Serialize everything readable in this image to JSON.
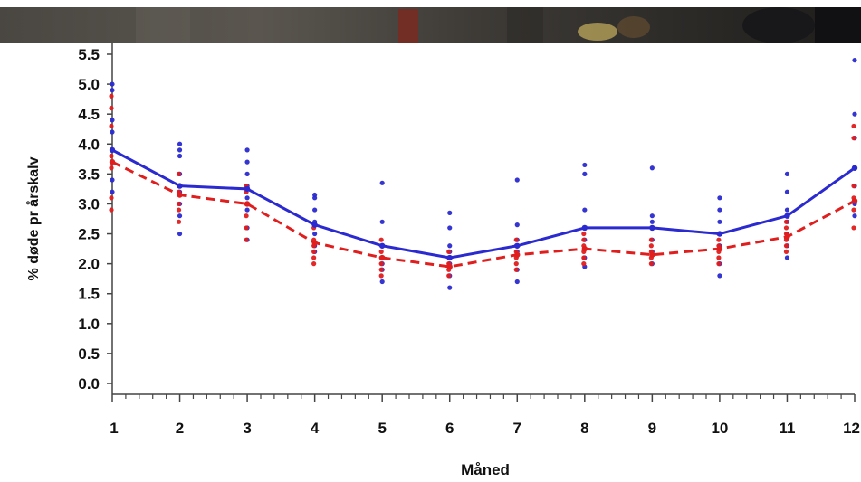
{
  "chart_data": {
    "type": "line",
    "title": "",
    "xlabel": "Måned",
    "ylabel": "% døde pr årskalv",
    "categories": [
      "1",
      "2",
      "3",
      "4",
      "5",
      "6",
      "7",
      "8",
      "9",
      "10",
      "11",
      "12"
    ],
    "ylim": [
      0,
      5.5
    ],
    "yticks": [
      "0.0",
      "0.5",
      "1.0",
      "1.5",
      "2.0",
      "2.5",
      "3.0",
      "3.5",
      "4.0",
      "4.5",
      "5.0",
      "5.5"
    ],
    "grid": false,
    "series": [
      {
        "color": "#2a2ad0",
        "line_style": "solid",
        "values": [
          3.9,
          3.3,
          3.25,
          2.65,
          2.3,
          2.1,
          2.3,
          2.6,
          2.6,
          2.5,
          2.8,
          3.6
        ],
        "points": [
          [
            5.0,
            4.9,
            4.4,
            4.2,
            3.9,
            3.4,
            3.2
          ],
          [
            4.0,
            3.9,
            3.8,
            3.5,
            3.2,
            3.0,
            2.8,
            2.5
          ],
          [
            3.9,
            3.7,
            3.5,
            3.3,
            3.1,
            2.9,
            2.6,
            2.4
          ],
          [
            3.15,
            3.1,
            2.9,
            2.7,
            2.5,
            2.3,
            2.2
          ],
          [
            3.35,
            2.7,
            2.3,
            2.1,
            2.0,
            1.9,
            1.7
          ],
          [
            2.85,
            2.6,
            2.3,
            2.2,
            2.0,
            1.8,
            1.6
          ],
          [
            3.4,
            2.65,
            2.4,
            2.3,
            2.2,
            1.9,
            1.7
          ],
          [
            3.65,
            3.5,
            2.9,
            2.6,
            2.4,
            2.1,
            1.95
          ],
          [
            3.6,
            2.8,
            2.7,
            2.6,
            2.4,
            2.2,
            2.0
          ],
          [
            3.1,
            2.9,
            2.7,
            2.5,
            2.3,
            2.0,
            1.8
          ],
          [
            3.5,
            3.2,
            2.9,
            2.7,
            2.5,
            2.3,
            2.1
          ],
          [
            5.4,
            4.5,
            4.1,
            3.6,
            3.3,
            3.0,
            2.8
          ]
        ]
      },
      {
        "color": "#e01e1e",
        "line_style": "dashed",
        "values": [
          3.7,
          3.15,
          3.0,
          2.35,
          2.1,
          1.95,
          2.15,
          2.25,
          2.15,
          2.25,
          2.45,
          3.05
        ],
        "points": [
          [
            4.8,
            4.6,
            4.3,
            3.8,
            3.6,
            3.1,
            2.9
          ],
          [
            3.5,
            3.3,
            3.2,
            3.0,
            2.9,
            2.7
          ],
          [
            3.3,
            3.2,
            3.0,
            2.8,
            2.6,
            2.4
          ],
          [
            2.6,
            2.4,
            2.3,
            2.2,
            2.1,
            2.0
          ],
          [
            2.4,
            2.2,
            2.1,
            2.0,
            1.9,
            1.8
          ],
          [
            2.2,
            2.1,
            2.0,
            1.9,
            1.8
          ],
          [
            2.4,
            2.3,
            2.2,
            2.1,
            2.0,
            1.9
          ],
          [
            2.5,
            2.4,
            2.3,
            2.2,
            2.1,
            2.0
          ],
          [
            2.4,
            2.3,
            2.2,
            2.1,
            2.0
          ],
          [
            2.5,
            2.4,
            2.3,
            2.2,
            2.1,
            2.0
          ],
          [
            2.7,
            2.6,
            2.5,
            2.4,
            2.3,
            2.2
          ],
          [
            4.3,
            4.1,
            3.3,
            3.1,
            2.9,
            2.6
          ]
        ]
      }
    ]
  }
}
